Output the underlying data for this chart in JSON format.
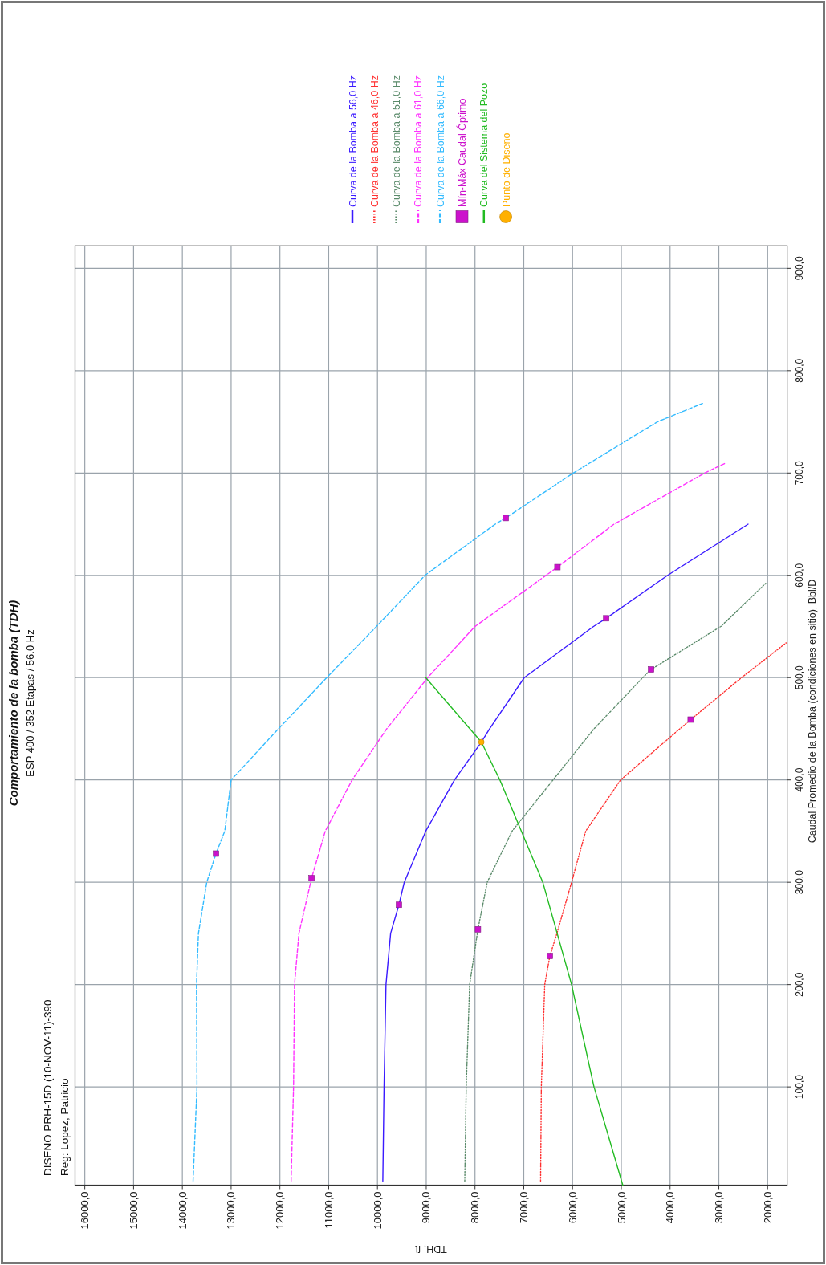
{
  "chart_data": {
    "type": "line",
    "title": "Comportamiento de la bomba (TDH)",
    "subtitle": "ESP 400 / 352 Etapas / 56.0 Hz",
    "xlabel": "TDH, ft",
    "ylabel": "Caudal Promedio de la Bomba (condiciones en sitio), Bbl/D",
    "annotations": [
      "DISEÑO PRH-15D (10-NOV-11)-390",
      "Reg: Lopez, Patricio"
    ],
    "xlim": [
      16200,
      1600
    ],
    "ylim": [
      4,
      922
    ],
    "xticks": [
      {
        "value": 16000,
        "label": "16000,0"
      },
      {
        "value": 15000,
        "label": "15000,0"
      },
      {
        "value": 14000,
        "label": "14000,0"
      },
      {
        "value": 13000,
        "label": "13000,0"
      },
      {
        "value": 12000,
        "label": "12000,0"
      },
      {
        "value": 11000,
        "label": "11000,0"
      },
      {
        "value": 10000,
        "label": "10000,0"
      },
      {
        "value": 9000,
        "label": "9000,0"
      },
      {
        "value": 8000,
        "label": "8000,0"
      },
      {
        "value": 7000,
        "label": "7000,0"
      },
      {
        "value": 6000,
        "label": "6000,0"
      },
      {
        "value": 5000,
        "label": "5000,0"
      },
      {
        "value": 4000,
        "label": "4000,0"
      },
      {
        "value": 3000,
        "label": "3000,0"
      },
      {
        "value": 2000,
        "label": "2000,0"
      }
    ],
    "yticks": [
      {
        "value": 100,
        "label": "100,0"
      },
      {
        "value": 200,
        "label": "200,0"
      },
      {
        "value": 300,
        "label": "300,0"
      },
      {
        "value": 400,
        "label": "400,0"
      },
      {
        "value": 500,
        "label": "500,0"
      },
      {
        "value": 600,
        "label": "600,0"
      },
      {
        "value": 700,
        "label": "700,0"
      },
      {
        "value": 800,
        "label": "800,0"
      },
      {
        "value": 900,
        "label": "900,0"
      }
    ],
    "grid": true,
    "legend": "top",
    "series": [
      {
        "name": "Curva de la Bomba a 56,0 Hz",
        "color": "#3a1aff",
        "line_style": "solid",
        "x": [
          9890,
          9865,
          9825,
          9730,
          9560,
          9450,
          9010,
          8420,
          7870,
          7700,
          6990,
          5570,
          5310,
          4050,
          2400
        ],
        "values": [
          8,
          100,
          200,
          250,
          278,
          300,
          350,
          400,
          437,
          450,
          500,
          550,
          558,
          600,
          650
        ]
      },
      {
        "name": "Curva de la Bomba a 46,0 Hz",
        "color": "#ff3030",
        "line_style": "dotted",
        "x": [
          6655,
          6640,
          6570,
          6465,
          6320,
          6020,
          5730,
          5015,
          3800,
          3578,
          2535,
          1620
        ],
        "values": [
          8,
          100,
          200,
          228,
          250,
          300,
          350,
          400,
          450,
          459,
          500,
          534
        ]
      },
      {
        "name": "Curva de la Bomba a 51,0 Hz",
        "color": "#5a8a6a",
        "line_style": "dotted",
        "x": [
          8210,
          8180,
          8110,
          7940,
          7750,
          7240,
          6400,
          5560,
          4560,
          4390,
          2960,
          2020
        ],
        "values": [
          8,
          100,
          200,
          254,
          300,
          350,
          400,
          450,
          500,
          508,
          550,
          593
        ]
      },
      {
        "name": "Curva de la Bomba a 61,0 Hz",
        "color": "#ff33ff",
        "line_style": "dashed",
        "x": [
          11770,
          11720,
          11700,
          11610,
          11350,
          11070,
          10520,
          9810,
          8970,
          8000,
          6310,
          5150,
          3290,
          2850
        ],
        "values": [
          8,
          100,
          200,
          250,
          304,
          350,
          400,
          450,
          500,
          550,
          608,
          650,
          700,
          710
        ]
      },
      {
        "name": "Curva de la Bomba a 66,0 Hz",
        "color": "#33bbff",
        "line_style": "dashed",
        "x": [
          13780,
          13700,
          13710,
          13670,
          13500,
          13310,
          13130,
          13000,
          12030,
          11040,
          10020,
          9025,
          7585,
          7370,
          5985,
          4260,
          3335
        ],
        "values": [
          8,
          100,
          200,
          250,
          300,
          328,
          350,
          400,
          450,
          500,
          550,
          600,
          650,
          656,
          700,
          750,
          768
        ]
      },
      {
        "name": "Mín-Máx Caudal Óptimo",
        "type": "scatter",
        "marker": "square",
        "color": "#cc11cc",
        "x": [
          13310,
          7370,
          11350,
          6310,
          9560,
          5310,
          7940,
          4390,
          6465,
          3578
        ],
        "values": [
          328,
          656,
          304,
          608,
          278,
          558,
          254,
          508,
          228,
          459
        ]
      },
      {
        "name": "Curva del Sistema del Pozo",
        "color": "#22bb22",
        "line_style": "solid",
        "x": [
          4970,
          5560,
          6020,
          6610,
          7050,
          7490,
          7870,
          9010
        ],
        "values": [
          4,
          100,
          200,
          300,
          350,
          400,
          437,
          500
        ]
      },
      {
        "name": "Punto de Diseño",
        "type": "scatter",
        "marker": "circle",
        "color": "#ffb000",
        "x": [
          7870
        ],
        "values": [
          437
        ]
      }
    ]
  }
}
